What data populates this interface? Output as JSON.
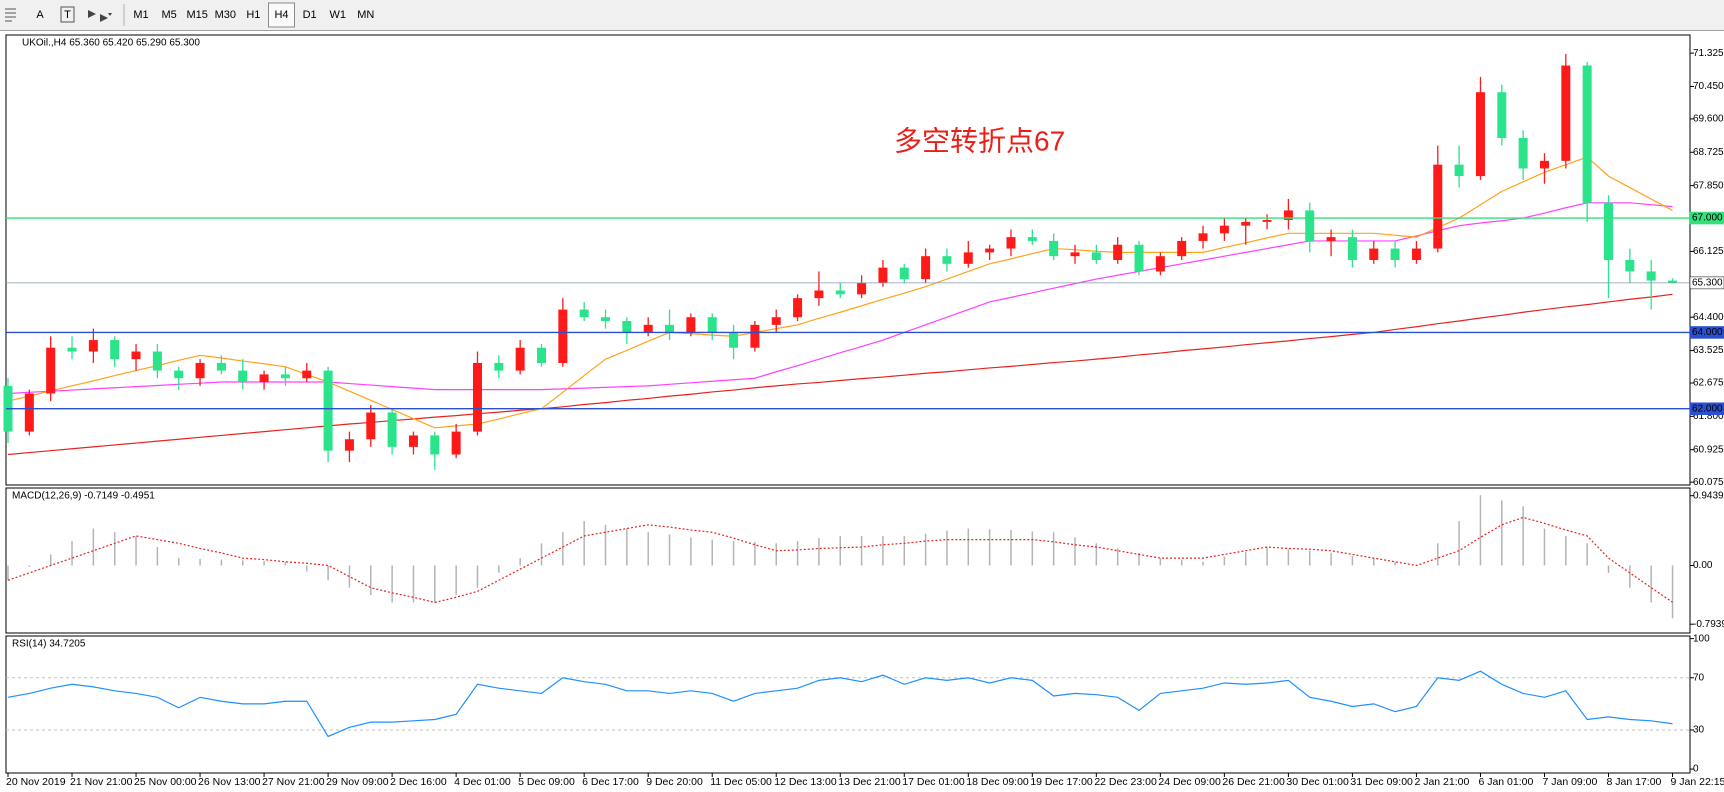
{
  "toolbar": {
    "tools": [
      "A",
      "T"
    ],
    "periods": [
      "M1",
      "M5",
      "M15",
      "M30",
      "H1",
      "H4",
      "D1",
      "W1",
      "MN"
    ],
    "active": "H4"
  },
  "chart_data": [
    {
      "type": "candlestick",
      "title": "UKOil.,H4  65.360 65.420 65.290 65.300",
      "annotation": "多空转折点67",
      "up_color": "#ff1a1a",
      "down_color": "#2be38b",
      "categories": [
        "20 Nov 2019",
        null,
        null,
        "21 Nov 21:00",
        null,
        null,
        "25 Nov 00:00",
        null,
        null,
        "26 Nov 13:00",
        null,
        null,
        "27 Nov 21:00",
        null,
        null,
        "29 Nov 09:00",
        null,
        null,
        "2 Dec 16:00",
        null,
        null,
        "4 Dec 01:00",
        null,
        null,
        "5 Dec 09:00",
        null,
        null,
        "6 Dec 17:00",
        null,
        null,
        "9 Dec 20:00",
        null,
        null,
        "11 Dec 05:00",
        null,
        null,
        "12 Dec 13:00",
        null,
        null,
        "13 Dec 21:00",
        null,
        null,
        "17 Dec 01:00",
        null,
        null,
        "18 Dec 09:00",
        null,
        null,
        "19 Dec 17:00",
        null,
        null,
        "22 Dec 23:00",
        null,
        null,
        "24 Dec 09:00",
        null,
        null,
        "26 Dec 21:00",
        null,
        null,
        "30 Dec 01:00",
        null,
        null,
        "31 Dec 09:00",
        null,
        null,
        "2 Jan 21:00",
        null,
        null,
        "6 Jan 01:00",
        null,
        null,
        "7 Jan 09:00",
        null,
        null,
        "8 Jan 17:00",
        null,
        null,
        "9 Jan 22:15"
      ],
      "ohlc": [
        [
          62.6,
          62.8,
          61.1,
          61.4
        ],
        [
          61.4,
          62.5,
          61.3,
          62.4
        ],
        [
          62.4,
          63.9,
          62.2,
          63.6
        ],
        [
          63.6,
          63.9,
          63.3,
          63.5
        ],
        [
          63.5,
          64.1,
          63.2,
          63.8
        ],
        [
          63.8,
          63.9,
          63.1,
          63.3
        ],
        [
          63.3,
          63.7,
          63.0,
          63.5
        ],
        [
          63.5,
          63.7,
          62.8,
          63.0
        ],
        [
          63.0,
          63.1,
          62.5,
          62.8
        ],
        [
          62.8,
          63.3,
          62.6,
          63.2
        ],
        [
          63.2,
          63.4,
          62.9,
          63.0
        ],
        [
          63.0,
          63.3,
          62.5,
          62.7
        ],
        [
          62.7,
          63.0,
          62.5,
          62.9
        ],
        [
          62.9,
          63.1,
          62.6,
          62.8
        ],
        [
          62.8,
          63.2,
          62.7,
          63.0
        ],
        [
          63.0,
          63.1,
          60.6,
          60.9
        ],
        [
          60.9,
          61.4,
          60.6,
          61.2
        ],
        [
          61.2,
          62.1,
          61.0,
          61.9
        ],
        [
          61.9,
          62.0,
          60.8,
          61.0
        ],
        [
          61.0,
          61.4,
          60.8,
          61.3
        ],
        [
          61.3,
          61.4,
          60.4,
          60.8
        ],
        [
          60.8,
          61.6,
          60.7,
          61.4
        ],
        [
          61.4,
          63.5,
          61.3,
          63.2
        ],
        [
          63.2,
          63.4,
          62.8,
          63.0
        ],
        [
          63.0,
          63.8,
          62.9,
          63.6
        ],
        [
          63.6,
          63.7,
          63.1,
          63.2
        ],
        [
          63.2,
          64.9,
          63.1,
          64.6
        ],
        [
          64.6,
          64.8,
          64.3,
          64.4
        ],
        [
          64.4,
          64.6,
          64.1,
          64.3
        ],
        [
          64.3,
          64.4,
          63.7,
          64.0
        ],
        [
          64.0,
          64.4,
          63.9,
          64.2
        ],
        [
          64.2,
          64.6,
          63.8,
          64.0
        ],
        [
          64.0,
          64.5,
          63.9,
          64.4
        ],
        [
          64.4,
          64.5,
          63.8,
          64.0
        ],
        [
          64.0,
          64.2,
          63.3,
          63.6
        ],
        [
          63.6,
          64.3,
          63.5,
          64.2
        ],
        [
          64.2,
          64.6,
          64.0,
          64.4
        ],
        [
          64.4,
          65.0,
          64.3,
          64.9
        ],
        [
          64.9,
          65.6,
          64.7,
          65.1
        ],
        [
          65.1,
          65.3,
          64.9,
          65.0
        ],
        [
          65.0,
          65.5,
          64.9,
          65.3
        ],
        [
          65.3,
          65.9,
          65.2,
          65.7
        ],
        [
          65.7,
          65.8,
          65.3,
          65.4
        ],
        [
          65.4,
          66.2,
          65.3,
          66.0
        ],
        [
          66.0,
          66.2,
          65.6,
          65.8
        ],
        [
          65.8,
          66.4,
          65.7,
          66.1
        ],
        [
          66.1,
          66.3,
          65.9,
          66.2
        ],
        [
          66.2,
          66.7,
          66.0,
          66.5
        ],
        [
          66.5,
          66.7,
          66.3,
          66.4
        ],
        [
          66.4,
          66.6,
          65.9,
          66.0
        ],
        [
          66.0,
          66.3,
          65.8,
          66.1
        ],
        [
          66.1,
          66.3,
          65.8,
          65.9
        ],
        [
          65.9,
          66.5,
          65.8,
          66.3
        ],
        [
          66.3,
          66.4,
          65.5,
          65.6
        ],
        [
          65.6,
          66.1,
          65.5,
          66.0
        ],
        [
          66.0,
          66.5,
          65.9,
          66.4
        ],
        [
          66.4,
          66.8,
          66.2,
          66.6
        ],
        [
          66.6,
          67.0,
          66.4,
          66.8
        ],
        [
          66.8,
          67.0,
          66.3,
          66.9
        ],
        [
          66.9,
          67.1,
          66.7,
          66.95
        ],
        [
          66.95,
          67.5,
          66.7,
          67.2
        ],
        [
          67.2,
          67.4,
          66.1,
          66.4
        ],
        [
          66.4,
          66.7,
          66.0,
          66.5
        ],
        [
          66.5,
          66.7,
          65.7,
          65.9
        ],
        [
          65.9,
          66.4,
          65.8,
          66.2
        ],
        [
          66.2,
          66.4,
          65.7,
          65.9
        ],
        [
          65.9,
          66.4,
          65.8,
          66.2
        ],
        [
          66.2,
          68.9,
          66.1,
          68.4
        ],
        [
          68.4,
          68.9,
          67.8,
          68.1
        ],
        [
          68.1,
          70.7,
          68.0,
          70.3
        ],
        [
          70.3,
          70.5,
          68.9,
          69.1
        ],
        [
          69.1,
          69.3,
          68.0,
          68.3
        ],
        [
          68.3,
          68.7,
          67.9,
          68.5
        ],
        [
          68.5,
          71.3,
          68.3,
          71.0
        ],
        [
          71.0,
          71.1,
          66.9,
          67.4
        ],
        [
          67.4,
          67.6,
          64.9,
          65.9
        ],
        [
          65.9,
          66.2,
          65.3,
          65.6
        ],
        [
          65.6,
          65.9,
          64.6,
          65.36
        ],
        [
          65.36,
          65.42,
          65.29,
          65.3
        ]
      ],
      "moving_averages": [
        {
          "color": "#e8231e",
          "values": [
            60.8,
            60.85,
            60.9,
            60.95,
            61.0,
            61.05,
            61.1,
            61.15,
            61.2,
            61.25,
            61.3,
            61.35,
            61.4,
            61.45,
            61.5,
            61.55,
            61.6,
            61.64,
            61.69,
            61.73,
            61.78,
            61.82,
            61.87,
            61.91,
            61.96,
            62.0,
            62.05,
            62.11,
            62.16,
            62.22,
            62.27,
            62.33,
            62.38,
            62.44,
            62.49,
            62.55,
            62.6,
            62.65,
            62.69,
            62.74,
            62.79,
            62.83,
            62.88,
            62.93,
            62.97,
            63.02,
            63.07,
            63.11,
            63.16,
            63.21,
            63.25,
            63.3,
            63.35,
            63.41,
            63.46,
            63.52,
            63.57,
            63.62,
            63.68,
            63.73,
            63.78,
            63.84,
            63.89,
            63.95,
            64.0,
            64.08,
            64.15,
            64.23,
            64.3,
            64.38,
            64.45,
            64.53,
            64.6,
            64.67,
            64.73,
            64.8,
            64.87,
            64.93,
            65.0
          ]
        },
        {
          "color": "#ff40ff",
          "values": [
            62.4,
            62.43,
            62.46,
            62.49,
            62.52,
            62.55,
            62.58,
            62.61,
            62.64,
            62.67,
            62.7,
            62.7,
            62.7,
            62.7,
            62.7,
            62.7,
            62.66,
            62.62,
            62.58,
            62.54,
            62.5,
            62.5,
            62.5,
            62.5,
            62.5,
            62.5,
            62.52,
            62.54,
            62.56,
            62.58,
            62.6,
            62.64,
            62.68,
            62.72,
            62.76,
            62.8,
            62.97,
            63.13,
            63.3,
            63.47,
            63.63,
            63.8,
            64.0,
            64.2,
            64.4,
            64.6,
            64.8,
            64.92,
            65.04,
            65.16,
            65.28,
            65.4,
            65.5,
            65.6,
            65.7,
            65.8,
            65.9,
            66.0,
            66.1,
            66.2,
            66.3,
            66.4,
            66.4,
            66.4,
            66.4,
            66.4,
            66.53,
            66.67,
            66.8,
            66.87,
            66.93,
            67.0,
            67.13,
            67.27,
            67.4,
            67.4,
            67.4,
            67.35,
            67.3
          ]
        },
        {
          "color": "#ffa31a",
          "values": [
            62.2,
            62.33,
            62.47,
            62.6,
            62.73,
            62.87,
            63.0,
            63.13,
            63.27,
            63.4,
            63.33,
            63.25,
            63.18,
            63.1,
            62.9,
            62.7,
            62.46,
            62.22,
            61.98,
            61.74,
            61.5,
            61.55,
            61.6,
            61.73,
            61.87,
            62.0,
            62.43,
            62.87,
            63.3,
            63.53,
            63.77,
            64.0,
            63.97,
            63.93,
            63.9,
            64.0,
            64.1,
            64.2,
            64.37,
            64.53,
            64.7,
            64.87,
            65.03,
            65.2,
            65.4,
            65.6,
            65.8,
            65.93,
            66.07,
            66.2,
            66.17,
            66.13,
            66.1,
            66.1,
            66.1,
            66.1,
            66.1,
            66.23,
            66.35,
            66.48,
            66.6,
            66.6,
            66.6,
            66.6,
            66.6,
            66.55,
            66.5,
            66.75,
            67.0,
            67.35,
            67.7,
            67.95,
            68.2,
            68.4,
            68.6,
            68.1,
            67.8,
            67.5,
            67.2
          ]
        }
      ],
      "hlines": [
        {
          "value": 67.0,
          "label": "67.000",
          "color": "#33e07a",
          "label_fill": "#33e07a"
        },
        {
          "value": 65.3,
          "label": "65.300",
          "color": "#7f9ab0",
          "label_fill": "#ffffff"
        },
        {
          "value": 64.0,
          "label": "64.000",
          "color": "#2a4fcf",
          "label_fill": "#2a4fcf"
        },
        {
          "value": 62.0,
          "label": "62.000",
          "color": "#2a4fcf",
          "label_fill": "#2a4fcf"
        }
      ],
      "ylim": [
        60.0,
        71.8
      ],
      "yticks": [
        {
          "value": 71.325,
          "label": "71.325"
        },
        {
          "value": 70.45,
          "label": "70.450"
        },
        {
          "value": 69.6,
          "label": "69.600"
        },
        {
          "value": 68.725,
          "label": "68.725"
        },
        {
          "value": 67.85,
          "label": "67.850"
        },
        {
          "value": 66.125,
          "label": "66.125"
        },
        {
          "value": 64.4,
          "label": "64.400"
        },
        {
          "value": 63.525,
          "label": "63.525"
        },
        {
          "value": 62.675,
          "label": "62.675"
        },
        {
          "value": 61.8,
          "label": "61.800"
        },
        {
          "value": 60.925,
          "label": "60.925"
        },
        {
          "value": 60.075,
          "label": "60.075"
        }
      ]
    },
    {
      "type": "macd",
      "title": "MACD(12,26,9) -0.7149 -0.4951",
      "histogram_color": "#b4b4b4",
      "signal_color": "#e8231e",
      "histogram": [
        -0.2,
        -0.02,
        0.15,
        0.33,
        0.5,
        0.45,
        0.4,
        0.25,
        0.1,
        0.09,
        0.08,
        0.07,
        0.06,
        0.05,
        -0.08,
        -0.2,
        -0.3,
        -0.4,
        -0.5,
        -0.5,
        -0.5,
        -0.4,
        -0.3,
        -0.1,
        0.1,
        0.3,
        0.45,
        0.6,
        0.55,
        0.5,
        0.45,
        0.42,
        0.38,
        0.35,
        0.33,
        0.32,
        0.3,
        0.33,
        0.37,
        0.4,
        0.4,
        0.4,
        0.4,
        0.43,
        0.47,
        0.5,
        0.49,
        0.48,
        0.46,
        0.45,
        0.38,
        0.3,
        0.23,
        0.17,
        0.1,
        0.08,
        0.05,
        0.12,
        0.18,
        0.25,
        0.22,
        0.2,
        0.17,
        0.13,
        0.1,
        0.05,
        0.0,
        0.3,
        0.6,
        0.95,
        0.88,
        0.8,
        0.5,
        0.4,
        0.3,
        -0.1,
        -0.3,
        -0.5,
        -0.7149
      ],
      "signal": [
        -0.2,
        -0.1,
        0.0,
        0.1,
        0.2,
        0.3,
        0.4,
        0.35,
        0.3,
        0.23,
        0.17,
        0.1,
        0.08,
        0.05,
        0.03,
        0.0,
        -0.15,
        -0.3,
        -0.37,
        -0.43,
        -0.5,
        -0.43,
        -0.35,
        -0.2,
        -0.05,
        0.1,
        0.25,
        0.4,
        0.45,
        0.5,
        0.55,
        0.52,
        0.48,
        0.45,
        0.37,
        0.28,
        0.2,
        0.21,
        0.23,
        0.24,
        0.25,
        0.28,
        0.3,
        0.33,
        0.35,
        0.35,
        0.35,
        0.35,
        0.35,
        0.32,
        0.28,
        0.25,
        0.2,
        0.15,
        0.1,
        0.1,
        0.1,
        0.15,
        0.2,
        0.25,
        0.23,
        0.22,
        0.2,
        0.15,
        0.1,
        0.05,
        0.0,
        0.1,
        0.2,
        0.38,
        0.55,
        0.65,
        0.57,
        0.48,
        0.4,
        0.1,
        -0.1,
        -0.3,
        -0.4951
      ],
      "ylim": [
        -0.913,
        1.048
      ],
      "yticks": [
        0.9439,
        {
          "value": 0,
          "label": "0.00"
        },
        -0.7939
      ]
    },
    {
      "type": "line",
      "title": "RSI(14) 34.7205",
      "color": "#1e90ff",
      "values": [
        55,
        58,
        62,
        65,
        63,
        60,
        58,
        55,
        47,
        55,
        52,
        50,
        50,
        52,
        52,
        25,
        32,
        36,
        36,
        37,
        38,
        42,
        65,
        62,
        60,
        58,
        70,
        67,
        65,
        60,
        60,
        58,
        60,
        58,
        52,
        58,
        60,
        62,
        68,
        70,
        67,
        72,
        65,
        70,
        68,
        70,
        66,
        70,
        68,
        56,
        58,
        57,
        55,
        45,
        58,
        60,
        62,
        66,
        65,
        66,
        68,
        55,
        52,
        48,
        50,
        44,
        48,
        70,
        68,
        75,
        65,
        58,
        55,
        60,
        38,
        40,
        38,
        37,
        34.7205
      ],
      "levels": [
        70,
        30
      ],
      "ylim": [
        -3,
        102
      ],
      "yticks": [
        100,
        70,
        30,
        0
      ]
    }
  ]
}
